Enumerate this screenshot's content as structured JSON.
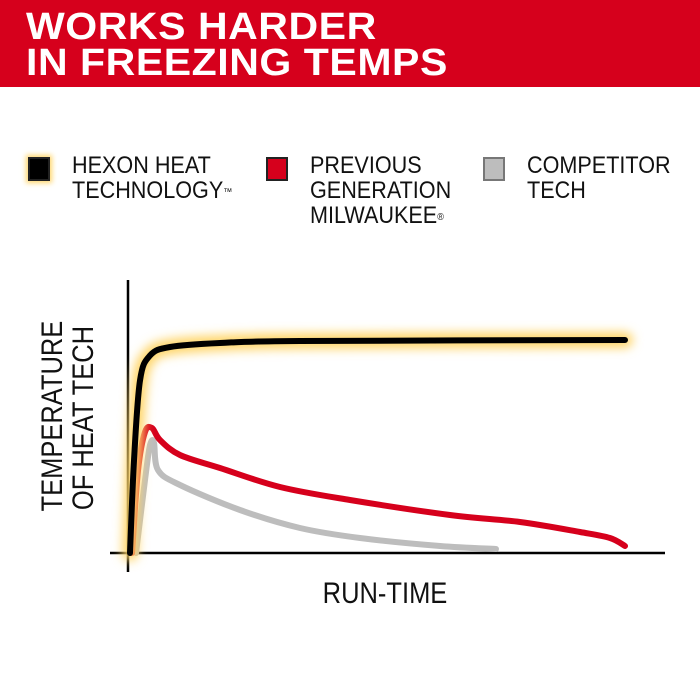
{
  "header": {
    "line1": "WORKS HARDER",
    "line2": "IN FREEZING TEMPS",
    "background": "#d6001c"
  },
  "legend": [
    {
      "label": "HEXON HEAT\nTECHNOLOGY",
      "mark": "™",
      "color": "#000000",
      "glow": "#ffd66b"
    },
    {
      "label": "PREVIOUS\nGENERATION\nMILWAUKEE",
      "mark": "®",
      "color": "#d6001c"
    },
    {
      "label": "COMPETITOR\nTECH",
      "mark": "",
      "color": "#bdbdbd"
    }
  ],
  "chart_data": {
    "type": "line",
    "title": "",
    "xlabel": "RUN-TIME",
    "ylabel": "TEMPERATURE OF HEAT TECH",
    "xlim": [
      0,
      100
    ],
    "ylim": [
      0,
      100
    ],
    "grid": false,
    "legend_position": "top",
    "series": [
      {
        "name": "HEXON HEAT TECHNOLOGY™",
        "color": "#000000",
        "glow": "#ffd66b",
        "x": [
          0,
          0.8,
          2,
          4,
          8,
          18,
          34,
          99
        ],
        "y": [
          0,
          37,
          69,
          79,
          82.4,
          84,
          84.8,
          85.2
        ]
      },
      {
        "name": "PREVIOUS GENERATION MILWAUKEE®",
        "color": "#d6001c",
        "x": [
          0.4,
          1.6,
          3,
          4.4,
          6,
          10,
          18,
          30,
          44,
          64,
          78,
          90,
          96,
          99
        ],
        "y": [
          0,
          33,
          48.4,
          50,
          45.2,
          39.2,
          34,
          26.4,
          21.2,
          15.2,
          12.4,
          8.4,
          6,
          2.8
        ]
      },
      {
        "name": "COMPETITOR TECH",
        "color": "#bdbdbd",
        "x": [
          1.2,
          3,
          4,
          4.8,
          5.6,
          10,
          22,
          34,
          46,
          62,
          73.2
        ],
        "y": [
          0,
          29.2,
          43.2,
          44,
          33.2,
          27.2,
          17.2,
          10,
          6,
          2.8,
          1.6
        ]
      }
    ]
  }
}
